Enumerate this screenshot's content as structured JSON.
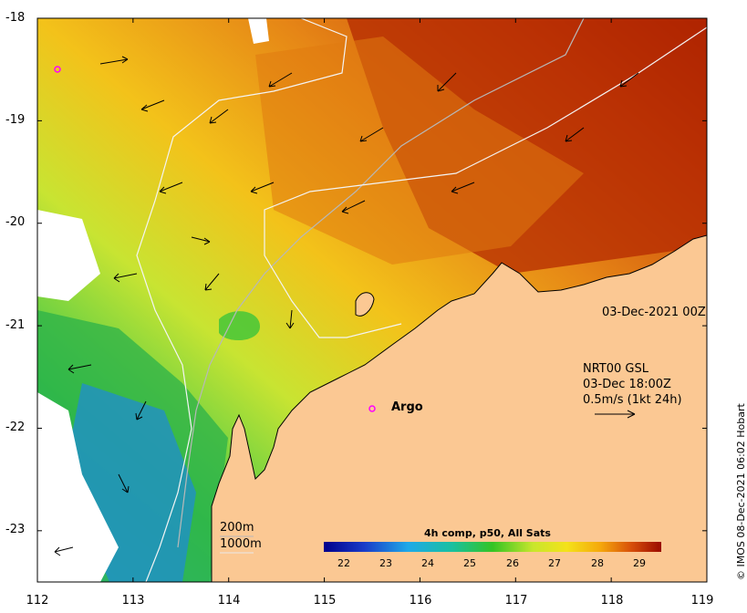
{
  "axes": {
    "x_ticks": [
      "112",
      "113",
      "114",
      "115",
      "116",
      "117",
      "118",
      "119"
    ],
    "y_ticks": [
      "-18",
      "-19",
      "-20",
      "-21",
      "-22",
      "-23"
    ],
    "x_range": [
      112,
      119
    ],
    "y_range": [
      -23.5,
      -18
    ]
  },
  "annotations": {
    "date_label": "03-Dec-2021 00Z",
    "current_source": "NRT00 GSL",
    "current_time": "03-Dec 18:00Z",
    "scale_note": "0.5m/s (1kt 24h)",
    "argo_label": "Argo",
    "contour_200": "200m",
    "contour_1000": "1000m",
    "copyright": "© IMOS 08-Dec-2021 06:02 Hobart"
  },
  "colorbar": {
    "title": "4h comp, p50, All Sats",
    "ticks": [
      "22",
      "23",
      "24",
      "25",
      "26",
      "27",
      "28",
      "29"
    ],
    "min": 21.6,
    "max": 29.6
  },
  "colors": {
    "land": "#fbc893",
    "coast": "#000000",
    "argo_marker": "#ff00ff"
  },
  "markers": {
    "argo_floats": [
      {
        "lon": 115.5,
        "lat": -21.8,
        "label": "Argo"
      },
      {
        "lon": 112.2,
        "lat": -18.5,
        "label": ""
      }
    ]
  }
}
